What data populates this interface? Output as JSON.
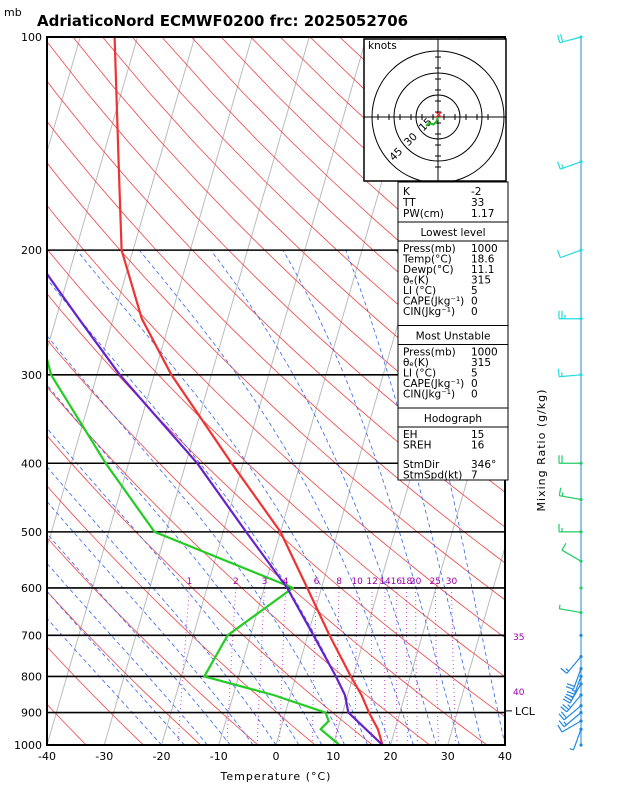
{
  "chart_data": {
    "type": "line",
    "title": "AdriaticoNord ECMWF0200 frc: 2025052706",
    "pressure_unit": "mb",
    "xlabel": "Temperature (°C)",
    "right_label": "Mixing Ratio (g/kg)",
    "xlim": [
      -40,
      40
    ],
    "plim": [
      1000,
      100
    ],
    "x_ticks": [
      -40,
      -30,
      -20,
      -10,
      0,
      10,
      20,
      30,
      40
    ],
    "p_ticks": [
      100,
      200,
      300,
      400,
      500,
      600,
      700,
      800,
      900,
      1000
    ],
    "mixing_ratio_labels": [
      "1",
      "2",
      "3",
      "4",
      "6",
      "8",
      "10",
      "12",
      "14",
      "16",
      "18",
      "20",
      "25",
      "30"
    ],
    "theta_e_labels": [
      {
        "text": "35",
        "value": 35
      },
      {
        "text": "40",
        "value": 40
      }
    ],
    "lcl_label": "LCL",
    "lcl_pressure": 895,
    "series": [
      {
        "key": "temperature",
        "color": "#ee3333",
        "points": [
          [
            1000,
            18.6
          ],
          [
            950,
            17
          ],
          [
            900,
            14.6
          ],
          [
            850,
            12.4
          ],
          [
            800,
            9.6
          ],
          [
            700,
            3.8
          ],
          [
            600,
            -2.5
          ],
          [
            500,
            -10
          ],
          [
            400,
            -22
          ],
          [
            300,
            -37
          ],
          [
            250,
            -45
          ],
          [
            200,
            -52
          ],
          [
            150,
            -57
          ],
          [
            100,
            -64
          ]
        ]
      },
      {
        "key": "dewpoint",
        "color": "#22cc22",
        "points": [
          [
            1000,
            11.1
          ],
          [
            950,
            7
          ],
          [
            925,
            8
          ],
          [
            900,
            7
          ],
          [
            850,
            -3
          ],
          [
            800,
            -16
          ],
          [
            700,
            -14
          ],
          [
            600,
            -5
          ],
          [
            500,
            -32
          ],
          [
            400,
            -44
          ],
          [
            300,
            -58
          ],
          [
            200,
            -70
          ],
          [
            150,
            -76
          ],
          [
            100,
            -82
          ]
        ]
      },
      {
        "key": "parcel",
        "color": "#6622cc",
        "points": [
          [
            1000,
            18.6
          ],
          [
            900,
            11
          ],
          [
            850,
            9.5
          ],
          [
            800,
            7
          ],
          [
            700,
            1
          ],
          [
            600,
            -6
          ],
          [
            500,
            -16
          ],
          [
            400,
            -28
          ],
          [
            300,
            -46
          ],
          [
            250,
            -56
          ],
          [
            200,
            -68
          ],
          [
            150,
            -84
          ],
          [
            110,
            -100
          ]
        ]
      }
    ],
    "hodograph": {
      "unit": "knots",
      "ring_labels": [
        "15",
        "30",
        "45"
      ],
      "trace": [
        [
          0,
          0
        ],
        [
          -1,
          -3
        ],
        [
          -3,
          -5
        ],
        [
          -6,
          -4
        ],
        [
          -8,
          -6
        ]
      ],
      "storm_dir": 346,
      "storm_speed": 7
    },
    "wind_barbs": [
      {
        "p": 100,
        "dir": 255,
        "spd": 20
      },
      {
        "p": 150,
        "dir": 250,
        "spd": 15
      },
      {
        "p": 200,
        "dir": 250,
        "spd": 10
      },
      {
        "p": 250,
        "dir": 270,
        "spd": 25
      },
      {
        "p": 300,
        "dir": 265,
        "spd": 15
      },
      {
        "p": 400,
        "dir": 270,
        "spd": 20
      },
      {
        "p": 450,
        "dir": 280,
        "spd": 15
      },
      {
        "p": 500,
        "dir": 270,
        "spd": 15
      },
      {
        "p": 550,
        "dir": 300,
        "spd": 10
      },
      {
        "p": 600,
        "dir": 0,
        "spd": 0
      },
      {
        "p": 650,
        "dir": 280,
        "spd": 5
      },
      {
        "p": 700,
        "dir": 0,
        "spd": 0
      },
      {
        "p": 750,
        "dir": 220,
        "spd": 15
      },
      {
        "p": 780,
        "dir": 200,
        "spd": 20
      },
      {
        "p": 800,
        "dir": 200,
        "spd": 25
      },
      {
        "p": 820,
        "dir": 210,
        "spd": 25
      },
      {
        "p": 850,
        "dir": 220,
        "spd": 25
      },
      {
        "p": 880,
        "dir": 230,
        "spd": 20
      },
      {
        "p": 900,
        "dir": 230,
        "spd": 15
      },
      {
        "p": 925,
        "dir": 240,
        "spd": 10
      },
      {
        "p": 950,
        "dir": 200,
        "spd": 5
      },
      {
        "p": 1000,
        "dir": 0,
        "spd": 0
      }
    ],
    "barb_colors": {
      "upper": "#22dddd",
      "mid": "#22cc66",
      "low": "#2288dd"
    },
    "background_lines": {
      "isotherm": "#bbbbbb",
      "dry_adiabat": "#ee4444",
      "moist_adiabat": "#3366ee",
      "mixing_ratio": "#cc33cc"
    }
  },
  "indices": {
    "group1": [
      {
        "label": "K",
        "value": "-2"
      },
      {
        "label": "TT",
        "value": "33"
      },
      {
        "label": "PW(cm)",
        "value": "1.17"
      }
    ],
    "lowest_level": {
      "heading": "Lowest level",
      "rows": [
        {
          "label": "Press(mb)",
          "value": "1000"
        },
        {
          "label": "Temp(°C)",
          "value": "18.6"
        },
        {
          "label": "Dewp(°C)",
          "value": "11.1"
        },
        {
          "label": "θₑ(K)",
          "value": "315"
        },
        {
          "label": "LI (°C)",
          "value": "5"
        },
        {
          "label": "CAPE(Jkg⁻¹)",
          "value": "0"
        },
        {
          "label": "CIN(Jkg⁻¹)",
          "value": "0"
        }
      ]
    },
    "most_unstable": {
      "heading": "Most Unstable",
      "rows": [
        {
          "label": "Press(mb)",
          "value": "1000"
        },
        {
          "label": "θₑ(K)",
          "value": "315"
        },
        {
          "label": "LI (°C)",
          "value": "5"
        },
        {
          "label": "CAPE(Jkg⁻¹)",
          "value": "0"
        },
        {
          "label": "CIN(Jkg⁻¹)",
          "value": "0"
        }
      ]
    },
    "hodograph_box": {
      "heading": "Hodograph",
      "rows": [
        {
          "label": "EH",
          "value": "15"
        },
        {
          "label": "SREH",
          "value": "16"
        },
        {
          "label": "StmDir",
          "value": "346°"
        },
        {
          "label": "StmSpd(kt)",
          "value": "7"
        }
      ]
    }
  }
}
